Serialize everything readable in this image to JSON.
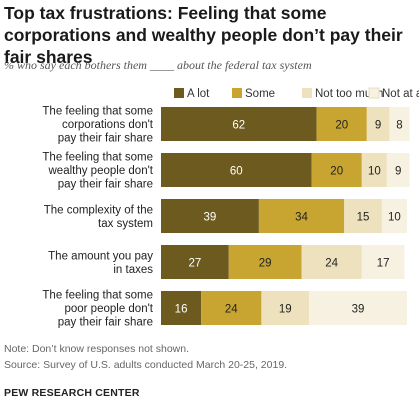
{
  "title": "Top tax frustrations: Feeling that some corporations and wealthy people don’t pay their fair shares",
  "subtitle": "% who say each bothers them ____ about the federal tax system",
  "note": "Note: Don’t know responses not shown.",
  "source": "Source: Survey of U.S. adults conducted March 20-25, 2019.",
  "brand": "PEW RESEARCH CENTER",
  "colors": {
    "A lot": "#6d5a1f",
    "Some": "#c7a530",
    "Not too much": "#ede2bd",
    "Not at all": "#f7f1e2"
  },
  "chart_data": {
    "type": "bar",
    "orientation": "horizontal",
    "stacked": true,
    "xlim": [
      0,
      100
    ],
    "legend_position": "top",
    "categories": [
      [
        "The feeling that some",
        "corporations don't",
        "pay their fair share"
      ],
      [
        "The feeling that some",
        "wealthy people don't",
        "pay their fair share"
      ],
      [
        "The complexity of the",
        "tax system"
      ],
      [
        "The amount you pay",
        "in taxes"
      ],
      [
        "The feeling that some",
        "poor people don't",
        "pay their fair share"
      ]
    ],
    "series": [
      {
        "name": "A lot",
        "values": [
          62,
          60,
          39,
          27,
          16
        ]
      },
      {
        "name": "Some",
        "values": [
          20,
          20,
          34,
          29,
          24
        ]
      },
      {
        "name": "Not too much",
        "values": [
          9,
          10,
          15,
          24,
          19
        ]
      },
      {
        "name": "Not at all",
        "values": [
          8,
          9,
          10,
          17,
          39
        ]
      }
    ]
  }
}
